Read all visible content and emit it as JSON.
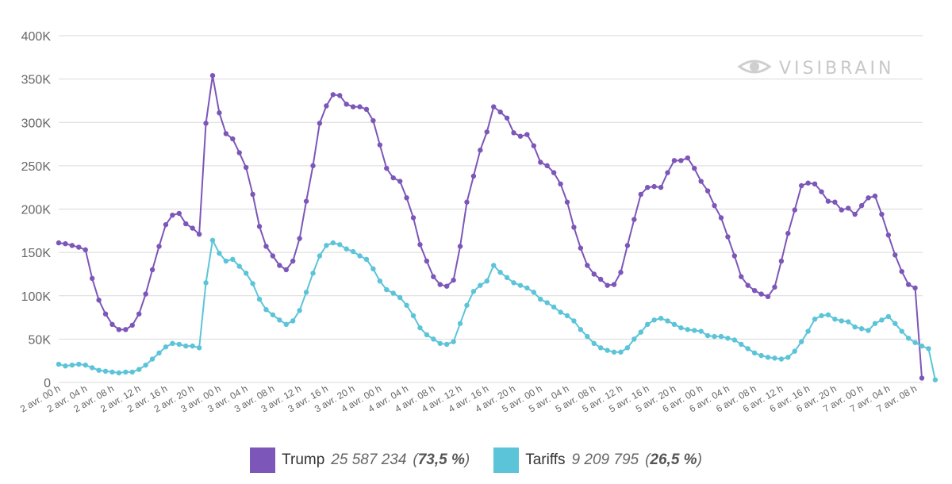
{
  "logo": {
    "text": "VISIBRAIN"
  },
  "colors": {
    "trump": "#7c56b8",
    "tariffs": "#5cc4d8",
    "grid": "#d9d9d9"
  },
  "legend": [
    {
      "name": "Trump",
      "total": "25 587 234",
      "share": "73,5 %"
    },
    {
      "name": "Tariffs",
      "total": "9 209 795",
      "share": "26,5 %"
    }
  ],
  "chart_data": {
    "type": "line",
    "title": "",
    "xlabel": "",
    "ylabel": "",
    "ylim": [
      0,
      400000
    ],
    "yticks": [
      "0",
      "50K",
      "100K",
      "150K",
      "200K",
      "250K",
      "300K",
      "350K",
      "400K"
    ],
    "grid": true,
    "legend_position": "bottom",
    "x_tick_labels": [
      "2 avr. 00 h",
      "2 avr. 04 h",
      "2 avr. 08 h",
      "2 avr. 12 h",
      "2 avr. 16 h",
      "2 avr. 20 h",
      "3 avr. 00 h",
      "3 avr. 04 h",
      "3 avr. 08 h",
      "3 avr. 12 h",
      "3 avr. 16 h",
      "3 avr. 20 h",
      "4 avr. 00 h",
      "4 avr. 04 h",
      "4 avr. 08 h",
      "4 avr. 12 h",
      "4 avr. 16 h",
      "4 avr. 20 h",
      "5 avr. 00 h",
      "5 avr. 04 h",
      "5 avr. 08 h",
      "5 avr. 12 h",
      "5 avr. 16 h",
      "5 avr. 20 h",
      "6 avr. 00 h",
      "6 avr. 04 h",
      "6 avr. 08 h",
      "6 avr. 12 h",
      "6 avr. 16 h",
      "6 avr. 20 h",
      "7 avr. 00 h",
      "7 avr. 04 h",
      "7 avr. 08 h"
    ],
    "x_interval": "1 h",
    "series": [
      {
        "name": "Trump",
        "values": [
          161000,
          160000,
          158000,
          156000,
          153000,
          120000,
          95000,
          79000,
          67000,
          61000,
          61000,
          66000,
          79000,
          102000,
          130000,
          157000,
          182000,
          193000,
          195000,
          183000,
          178000,
          171000,
          299000,
          354000,
          311000,
          287000,
          281000,
          265000,
          248000,
          217000,
          180000,
          157000,
          146000,
          135000,
          130000,
          140000,
          166000,
          209000,
          250000,
          299000,
          319000,
          332000,
          331000,
          321000,
          318000,
          318000,
          315000,
          302000,
          274000,
          247000,
          236000,
          232000,
          213000,
          190000,
          159000,
          140000,
          122000,
          113000,
          111000,
          118000,
          157000,
          208000,
          238000,
          268000,
          289000,
          318000,
          312000,
          305000,
          288000,
          284000,
          286000,
          273000,
          254000,
          250000,
          242000,
          229000,
          208000,
          179000,
          155000,
          135000,
          125000,
          119000,
          112000,
          113000,
          127000,
          158000,
          188000,
          217000,
          225000,
          226000,
          225000,
          242000,
          256000,
          256000,
          259000,
          247000,
          232000,
          221000,
          204000,
          190000,
          168000,
          146000,
          122000,
          112000,
          106000,
          102000,
          99000,
          110000,
          140000,
          172000,
          199000,
          227000,
          230000,
          229000,
          220000,
          209000,
          208000,
          199000,
          201000,
          194000,
          204000,
          213000,
          215000,
          194000,
          170000,
          147000,
          128000,
          113000,
          109000,
          5000
        ]
      },
      {
        "name": "Tariffs",
        "values": [
          21000,
          19000,
          20000,
          21000,
          20000,
          17000,
          14000,
          13000,
          12000,
          11000,
          12000,
          12000,
          15000,
          20000,
          27000,
          34000,
          41000,
          45000,
          44000,
          42000,
          42000,
          40000,
          115000,
          164000,
          149000,
          140000,
          142000,
          134000,
          126000,
          114000,
          96000,
          84000,
          78000,
          72000,
          67000,
          71000,
          83000,
          104000,
          126000,
          146000,
          158000,
          161000,
          159000,
          154000,
          151000,
          146000,
          142000,
          131000,
          117000,
          107000,
          103000,
          98000,
          89000,
          77000,
          63000,
          55000,
          50000,
          45000,
          44000,
          47000,
          68000,
          89000,
          105000,
          112000,
          117000,
          135000,
          127000,
          121000,
          115000,
          112000,
          109000,
          104000,
          96000,
          92000,
          87000,
          81000,
          77000,
          71000,
          61000,
          53000,
          45000,
          40000,
          37000,
          35000,
          35000,
          40000,
          50000,
          58000,
          67000,
          72000,
          74000,
          71000,
          67000,
          63000,
          61000,
          60000,
          59000,
          54000,
          53000,
          53000,
          51000,
          49000,
          44000,
          39000,
          34000,
          31000,
          29000,
          28000,
          27000,
          29000,
          36000,
          47000,
          59000,
          73000,
          77000,
          78000,
          73000,
          71000,
          70000,
          64000,
          62000,
          60000,
          68000,
          72000,
          76000,
          68000,
          59000,
          51000,
          46000,
          42000,
          39000,
          3000
        ]
      }
    ]
  }
}
